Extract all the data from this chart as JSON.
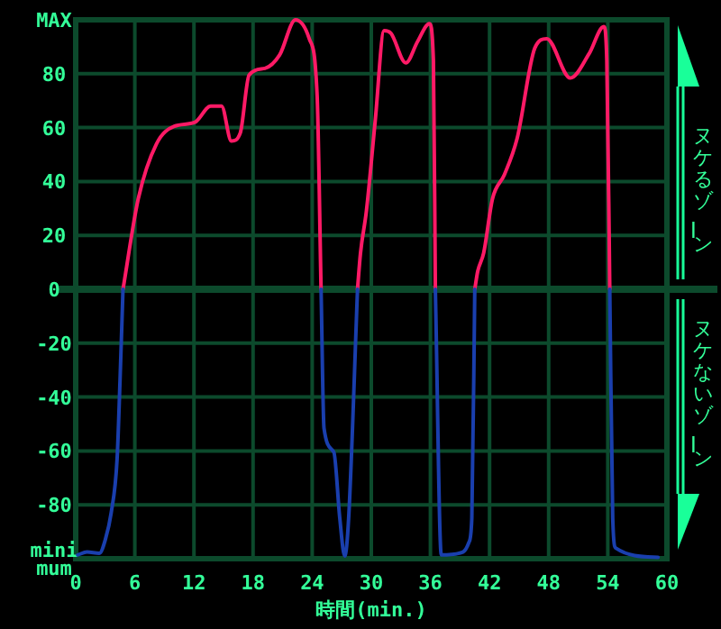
{
  "chart_data": {
    "type": "line",
    "xlabel": "時間(min.)",
    "xlim": [
      0,
      60
    ],
    "xticks": [
      0,
      6,
      12,
      18,
      24,
      30,
      36,
      42,
      48,
      54,
      60
    ],
    "ylim": [
      -100,
      100
    ],
    "yticks": [
      {
        "value": 100,
        "label": "MAX"
      },
      80,
      60,
      40,
      20,
      0,
      -20,
      -40,
      -60,
      -80,
      {
        "value": -100,
        "label": "mini\nmum"
      }
    ],
    "grid": true,
    "line_style": "solid",
    "marker": "none",
    "ref_lines": [
      {
        "axis": "y",
        "value": 0,
        "color": "#0c4a2c"
      }
    ],
    "annotations": [
      "ヌケるゾーン",
      "ヌケないゾーン"
    ],
    "series": [
      {
        "color": "#ff1a66",
        "x": [
          4.8,
          6.35,
          8.2,
          10,
          12.1,
          13.7,
          14.8,
          15.8,
          16.7,
          17.6,
          19.2,
          20.7,
          22.3,
          23.7,
          24.5,
          24.9
        ],
        "values": [
          0,
          33.6,
          54,
          60.5,
          62,
          68,
          68,
          55,
          58,
          79.5,
          82,
          87,
          100,
          93,
          72,
          0
        ]
      },
      {
        "color": "#ff1a66",
        "x": [
          28.6,
          28.9,
          29.5,
          30.4,
          31.3,
          32,
          33.5,
          34.7,
          35.9,
          36.3,
          36.5
        ],
        "values": [
          0,
          13.4,
          29,
          62.7,
          96,
          95,
          84,
          92,
          98.6,
          85,
          0
        ]
      },
      {
        "color": "#ff1a66",
        "x": [
          40.5,
          40.8,
          41.4,
          42.3,
          43.5,
          44.8,
          46.6,
          47.8,
          50.2,
          52.1,
          53.6,
          53.9,
          54.2
        ],
        "values": [
          0,
          6.7,
          13.4,
          33.6,
          42.5,
          56,
          89.6,
          93,
          78.4,
          87.4,
          97.5,
          85,
          0
        ]
      },
      {
        "color": "#1a3fae",
        "x": [
          0.2,
          1.15,
          2.4,
          3,
          3.6,
          4.2,
          4.5,
          4.8
        ],
        "values": [
          -98.6,
          -97.5,
          -98,
          -93,
          -83,
          -63,
          -33.6,
          0
        ]
      },
      {
        "color": "#1a3fae",
        "x": [
          24.9,
          25.2,
          26.2,
          26.8,
          27.3,
          27.7,
          28.6
        ],
        "values": [
          0,
          -51.6,
          -60.5,
          -85,
          -99,
          -85,
          0
        ]
      },
      {
        "color": "#1a3fae",
        "x": [
          36.5,
          37.1,
          39.3,
          39.9,
          40.2,
          40.5
        ],
        "values": [
          0,
          -98.6,
          -97.5,
          -94,
          -85,
          0
        ]
      },
      {
        "color": "#1a3fae",
        "x": [
          54.2,
          54.5,
          54.8,
          59.1
        ],
        "values": [
          0,
          -85,
          -96,
          -99.5
        ]
      }
    ]
  }
}
